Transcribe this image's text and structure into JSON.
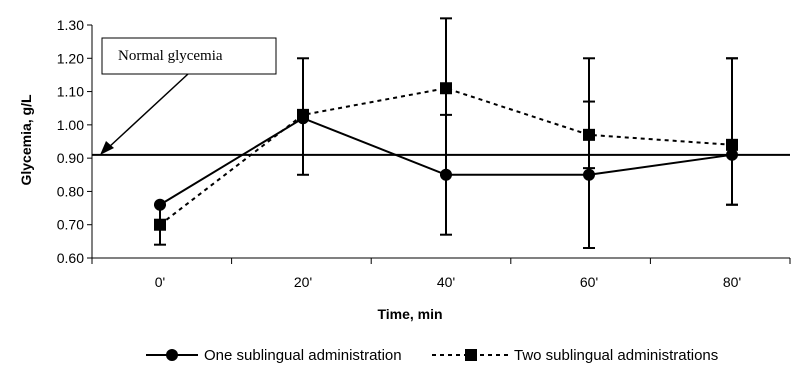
{
  "chart_data": {
    "type": "line",
    "xlabel": "Time, min",
    "ylabel": "Glycemia,  g/L",
    "categories": [
      "0'",
      "20'",
      "40'",
      "60'",
      "80'"
    ],
    "ylim": [
      0.6,
      1.3
    ],
    "yticks": [
      "0.60",
      "0.70",
      "0.80",
      "0.90",
      "1.00",
      "1.10",
      "1.20",
      "1.30"
    ],
    "reference_line": {
      "value": 0.91,
      "label": "Normal glycemia"
    },
    "series": [
      {
        "name": "One sublingual administration",
        "values": [
          0.76,
          1.02,
          0.85,
          0.85,
          0.91
        ],
        "line_style": "solid",
        "marker": "circle",
        "error_bars": [
          null,
          null,
          [
            0.67,
            1.03
          ],
          [
            0.63,
            1.07
          ],
          [
            0.76,
            1.2
          ]
        ]
      },
      {
        "name": "Two sublingual administrations",
        "values": [
          0.7,
          1.03,
          1.11,
          0.97,
          0.94
        ],
        "line_style": "dashed",
        "marker": "square",
        "error_bars": [
          [
            0.64,
            0.76
          ],
          [
            0.85,
            1.2
          ],
          [
            0.85,
            1.32
          ],
          [
            0.87,
            1.2
          ],
          [
            0.76,
            1.2
          ]
        ]
      }
    ],
    "grid": false,
    "legend_position": "bottom",
    "colors": {
      "line": "#000000",
      "background": "#ffffff"
    }
  }
}
